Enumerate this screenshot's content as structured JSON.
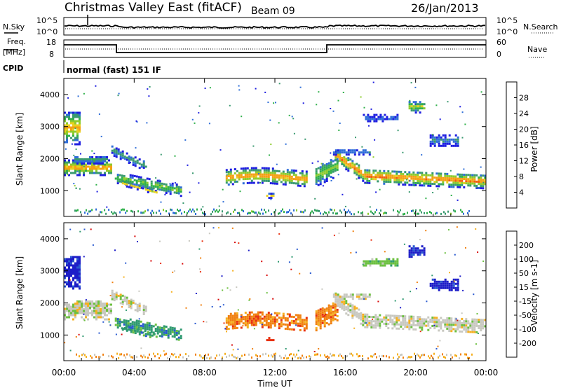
{
  "header": {
    "title": "Christmas Valley East (fitACF)",
    "beam": "Beam 09",
    "date": "26/Jan/2013"
  },
  "strips": {
    "nsky_label": "N.Sky",
    "nsky_ticks": [
      "10^5",
      "10^0"
    ],
    "nsearch_label": "N.Search",
    "nsearch_ticks": [
      "10^5",
      "10^0"
    ],
    "freq_label_1": "Freq.",
    "freq_label_2": "[MHz]",
    "freq_ticks": [
      "18",
      "8"
    ],
    "nave_label": "Nave",
    "nave_ticks": [
      "60",
      "0"
    ],
    "cpid_label": "CPID",
    "cpid_value": "normal (fast) 151 IF"
  },
  "chart_data": [
    {
      "type": "heatmap",
      "quantity": "Power",
      "ylabel": "Slant Range [km]",
      "xlabel": "",
      "ylim": [
        200,
        4500
      ],
      "xlim_hours": [
        0,
        24
      ],
      "y_ticks": [
        "1000",
        "2000",
        "3000",
        "4000"
      ],
      "colorbar": {
        "label": "Power [dB]",
        "ticks": [
          "4",
          "8",
          "12",
          "16",
          "20",
          "24",
          "28"
        ],
        "colors": [
          "#1e1ee0",
          "#2f6ed8",
          "#3a9a70",
          "#2fb04a",
          "#8ecb2d",
          "#e8d020",
          "#f5a014",
          "#f06010",
          "#e01010"
        ]
      }
    },
    {
      "type": "heatmap",
      "quantity": "Velocity",
      "ylabel": "Slant Range [km]",
      "xlabel": "Time UT",
      "ylim": [
        200,
        4500
      ],
      "xlim_hours": [
        0,
        24
      ],
      "x_ticks": [
        "00:00",
        "04:00",
        "08:00",
        "12:00",
        "16:00",
        "20:00",
        "00:00"
      ],
      "y_ticks": [
        "1000",
        "2000",
        "3000",
        "4000"
      ],
      "colorbar": {
        "label": "Velocity [m s-1]",
        "ticks": [
          "200",
          "100",
          "50",
          "15",
          "-15",
          "-50",
          "-100",
          "-200"
        ],
        "colors": [
          "#1e1ec8",
          "#2a5ad0",
          "#2f9a70",
          "#6cc040",
          "#c8c8c0",
          "#f5b020",
          "#f08010",
          "#e83010",
          "#d80808"
        ]
      }
    }
  ]
}
